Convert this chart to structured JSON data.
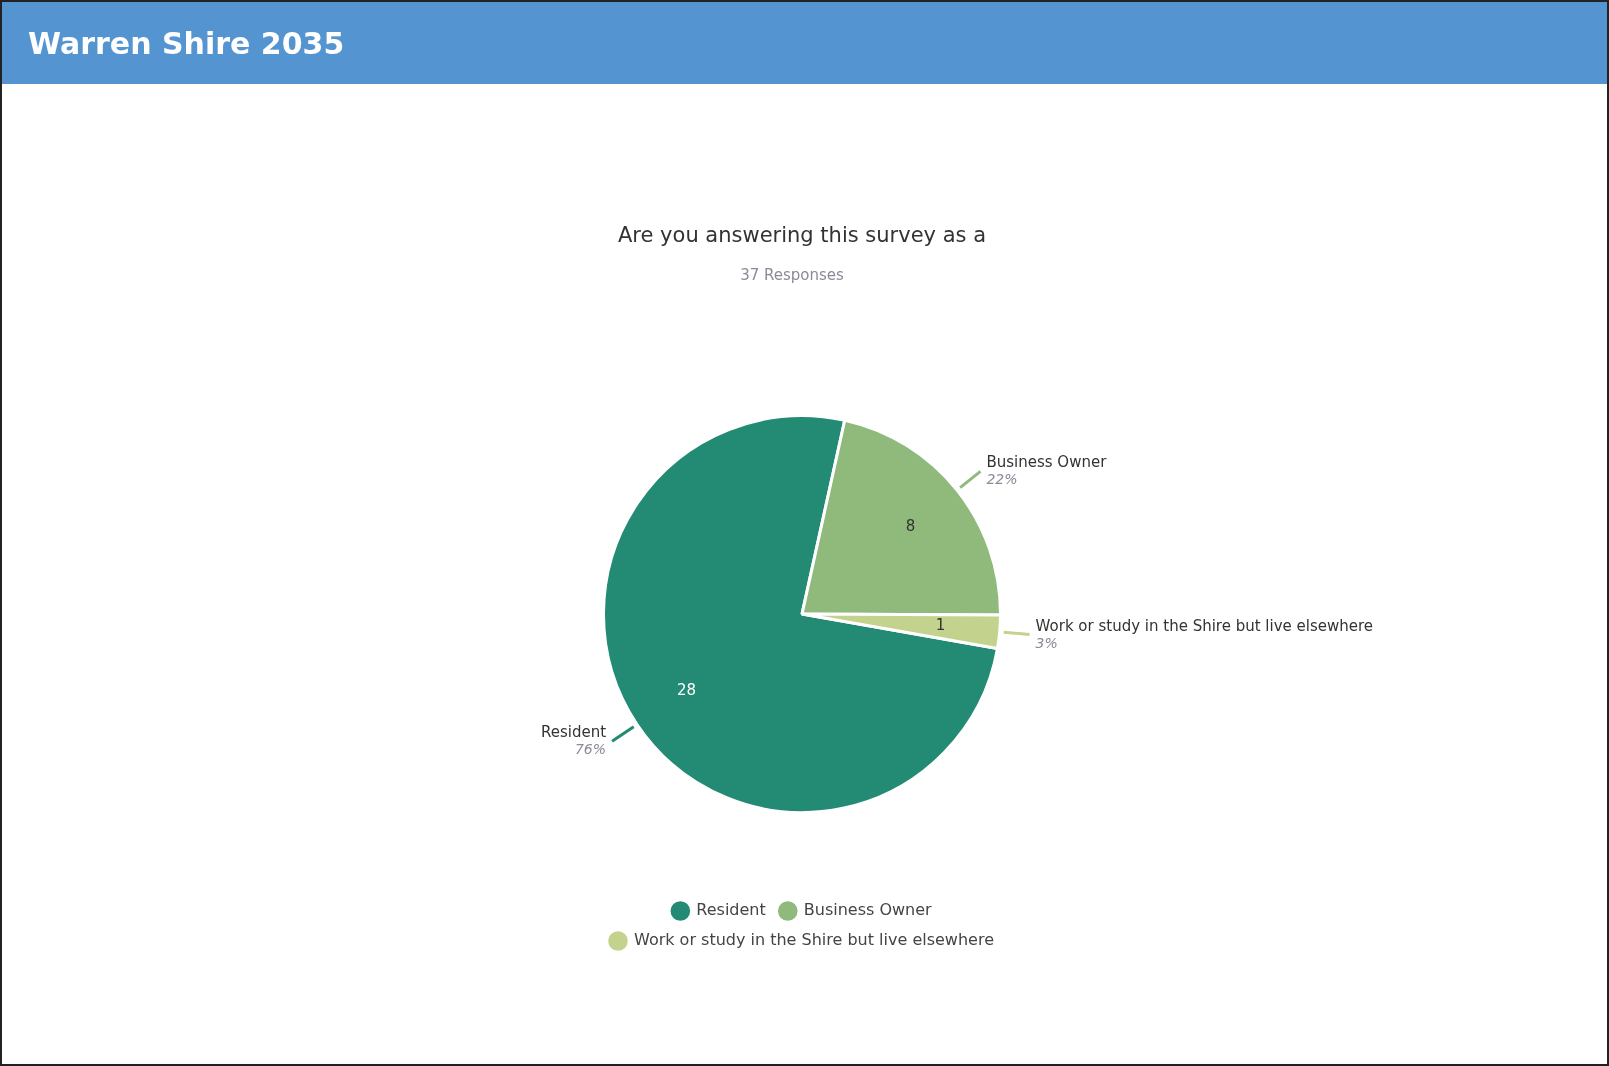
{
  "chart_data": {
    "type": "pie",
    "title": "Warren Shire 2035",
    "subtitle": "Are you answering this survey as a",
    "annotations": [
      "37 Responses",
      {
        "text": "76%",
        "x": "Resident"
      },
      {
        "text": "22%",
        "x": "Business Owner"
      },
      {
        "text": "3%",
        "x": "Work or study in the Shire but live elsewhere"
      }
    ],
    "categories": [
      "Resident",
      "Business Owner",
      "Work or study in the Shire but live elsewhere"
    ],
    "values": [
      28,
      8,
      1
    ],
    "colors": [
      "#238b73",
      "#8fba7c",
      "#c3d38e"
    ],
    "data_labels": true,
    "legend": "bottom"
  }
}
